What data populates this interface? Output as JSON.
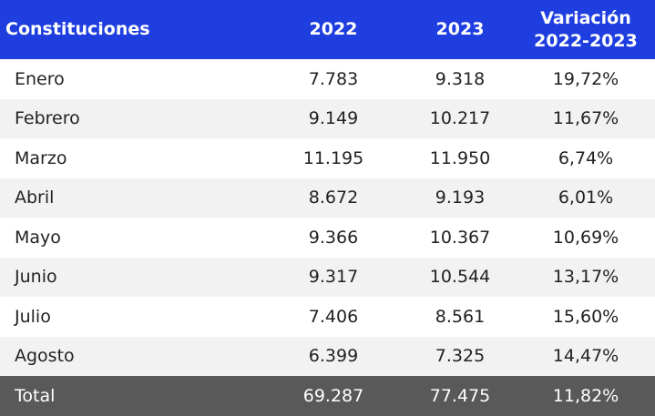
{
  "colors": {
    "header_bg": "#1f3ee0",
    "row_alt_bg": "#f2f2f2",
    "total_bg": "#595959"
  },
  "header": {
    "col0": "Constituciones",
    "col1": "2022",
    "col2": "2023",
    "col3_line1": "Variación",
    "col3_line2": "2022-2023"
  },
  "rows": [
    {
      "month": "Enero",
      "v2022": "7.783",
      "v2023": "9.318",
      "var": "19,72%"
    },
    {
      "month": "Febrero",
      "v2022": "9.149",
      "v2023": "10.217",
      "var": "11,67%"
    },
    {
      "month": "Marzo",
      "v2022": "11.195",
      "v2023": "11.950",
      "var": "6,74%"
    },
    {
      "month": "Abril",
      "v2022": "8.672",
      "v2023": "9.193",
      "var": "6,01%"
    },
    {
      "month": "Mayo",
      "v2022": "9.366",
      "v2023": "10.367",
      "var": "10,69%"
    },
    {
      "month": "Junio",
      "v2022": "9.317",
      "v2023": "10.544",
      "var": "13,17%"
    },
    {
      "month": "Julio",
      "v2022": "7.406",
      "v2023": "8.561",
      "var": "15,60%"
    },
    {
      "month": "Agosto",
      "v2022": "6.399",
      "v2023": "7.325",
      "var": "14,47%"
    }
  ],
  "total": {
    "label": "Total",
    "v2022": "69.287",
    "v2023": "77.475",
    "var": "11,82%"
  }
}
